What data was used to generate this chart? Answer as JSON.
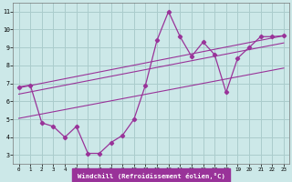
{
  "xlabel": "Windchill (Refroidissement éolien,°C)",
  "bg_color": "#cce8e8",
  "grid_color": "#aacccc",
  "line_color": "#993399",
  "xlim": [
    -0.5,
    23.5
  ],
  "ylim": [
    2.5,
    11.5
  ],
  "xticks": [
    0,
    1,
    2,
    3,
    4,
    5,
    6,
    7,
    8,
    9,
    10,
    11,
    12,
    13,
    14,
    15,
    16,
    17,
    18,
    19,
    20,
    21,
    22,
    23
  ],
  "yticks": [
    3,
    4,
    5,
    6,
    7,
    8,
    9,
    10,
    11
  ],
  "data_x": [
    0,
    1,
    2,
    3,
    4,
    5,
    6,
    7,
    8,
    9,
    10,
    11,
    12,
    13,
    14,
    15,
    16,
    17,
    18,
    19,
    20,
    21,
    22,
    23
  ],
  "data_y": [
    6.8,
    6.9,
    4.8,
    4.6,
    4.0,
    4.6,
    3.1,
    3.1,
    3.7,
    4.1,
    5.0,
    6.9,
    9.4,
    11.0,
    9.6,
    8.5,
    9.3,
    8.6,
    6.5,
    8.4,
    9.0,
    9.6,
    9.6,
    9.65
  ],
  "reg_lines": [
    {
      "x0": 0,
      "y0": 6.75,
      "x1": 23,
      "y1": 9.65
    },
    {
      "x0": 0,
      "y0": 6.4,
      "x1": 23,
      "y1": 9.25
    },
    {
      "x0": 0,
      "y0": 5.05,
      "x1": 23,
      "y1": 7.85
    }
  ],
  "xlabel_bg": "#993399",
  "xlabel_fg": "#ffffff"
}
